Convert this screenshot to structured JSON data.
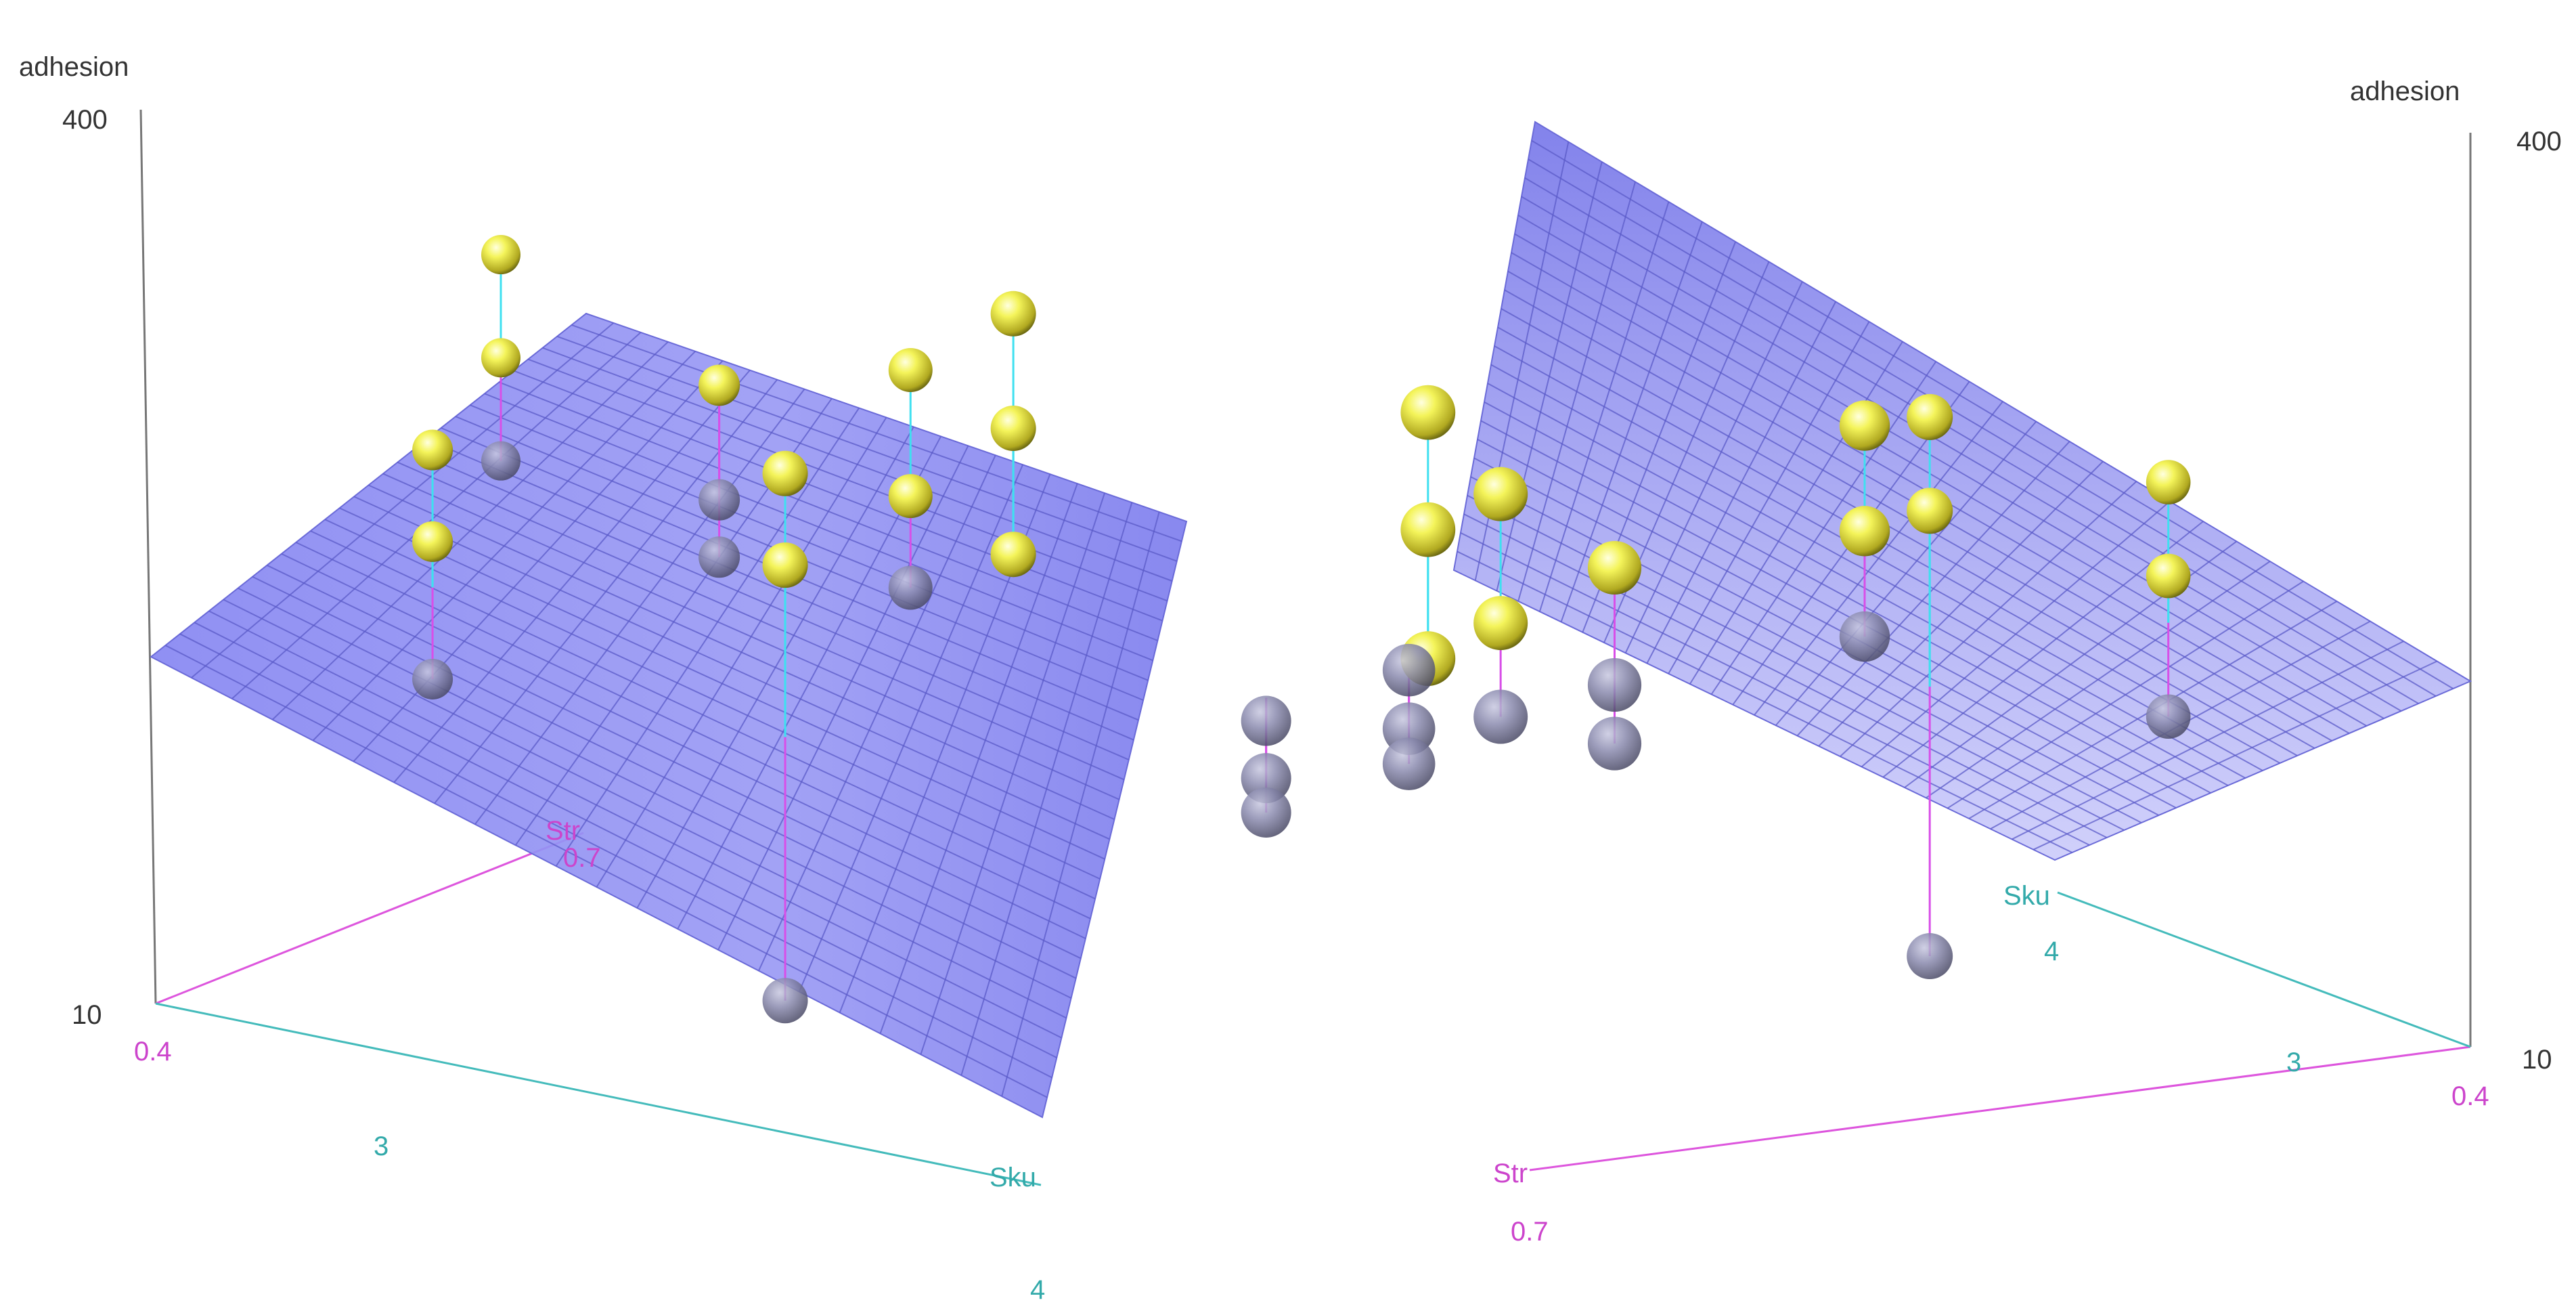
{
  "colors": {
    "plane": "#8b8bf0",
    "plane_grid": "#5b5bc8",
    "point_above": "#f2f24a",
    "point_below": "#8a8aa8",
    "resid_up": "#3fe0f0",
    "resid_down": "#d84fe8",
    "axis_str": "#d84fe8",
    "axis_sku": "#44bbbb",
    "axis_z": "#777777"
  },
  "chart_data": [
    {
      "type": "scatter3d",
      "view": "left",
      "zlabel": "adhesion",
      "xlabel": "Str",
      "ylabel": "Sku",
      "xlim": [
        0.4,
        0.7
      ],
      "ylim": [
        3,
        4
      ],
      "zlim": [
        10,
        400
      ],
      "ticks": {
        "z_max": "400",
        "z_min": "10",
        "x_min": "0.4",
        "x_max": "0.7",
        "y_min": "3",
        "y_max": "4"
      },
      "surface": "regression plane",
      "points": [
        {
          "x": 0.47,
          "y": 3.2,
          "z": 250,
          "fit": 190
        },
        {
          "x": 0.47,
          "y": 3.2,
          "z": 210,
          "fit": 190
        },
        {
          "x": 0.47,
          "y": 3.2,
          "z": 150,
          "fit": 190
        },
        {
          "x": 0.58,
          "y": 3.1,
          "z": 300,
          "fit": 250
        },
        {
          "x": 0.58,
          "y": 3.1,
          "z": 255,
          "fit": 250
        },
        {
          "x": 0.58,
          "y": 3.1,
          "z": 210,
          "fit": 250
        },
        {
          "x": 0.5,
          "y": 3.55,
          "z": 260,
          "fit": 145
        },
        {
          "x": 0.5,
          "y": 3.55,
          "z": 220,
          "fit": 145
        },
        {
          "x": 0.5,
          "y": 3.55,
          "z": 30,
          "fit": 145
        },
        {
          "x": 0.64,
          "y": 3.25,
          "z": 240,
          "fit": 235
        },
        {
          "x": 0.64,
          "y": 3.25,
          "z": 190,
          "fit": 235
        },
        {
          "x": 0.64,
          "y": 3.25,
          "z": 165,
          "fit": 235
        },
        {
          "x": 0.66,
          "y": 3.55,
          "z": 290,
          "fit": 185
        },
        {
          "x": 0.66,
          "y": 3.55,
          "z": 240,
          "fit": 185
        },
        {
          "x": 0.66,
          "y": 3.55,
          "z": 185,
          "fit": 185
        },
        {
          "x": 0.65,
          "y": 3.45,
          "z": 260,
          "fit": 200
        },
        {
          "x": 0.65,
          "y": 3.45,
          "z": 205,
          "fit": 200
        },
        {
          "x": 0.65,
          "y": 3.45,
          "z": 165,
          "fit": 200
        },
        {
          "x": 0.62,
          "y": 3.9,
          "z": 150,
          "fit": 160
        },
        {
          "x": 0.62,
          "y": 3.9,
          "z": 125,
          "fit": 160
        },
        {
          "x": 0.62,
          "y": 3.9,
          "z": 110,
          "fit": 160
        }
      ]
    },
    {
      "type": "scatter3d",
      "view": "right",
      "zlabel": "adhesion",
      "xlabel": "Str",
      "ylabel": "Sku",
      "xlim": [
        0.4,
        0.7
      ],
      "ylim": [
        3,
        4
      ],
      "zlim": [
        10,
        400
      ],
      "ticks": {
        "z_max": "400",
        "z_min": "10",
        "x_min": "0.4",
        "x_max": "0.7",
        "y_min": "3",
        "y_max": "4"
      },
      "surface": "regression plane"
    }
  ]
}
